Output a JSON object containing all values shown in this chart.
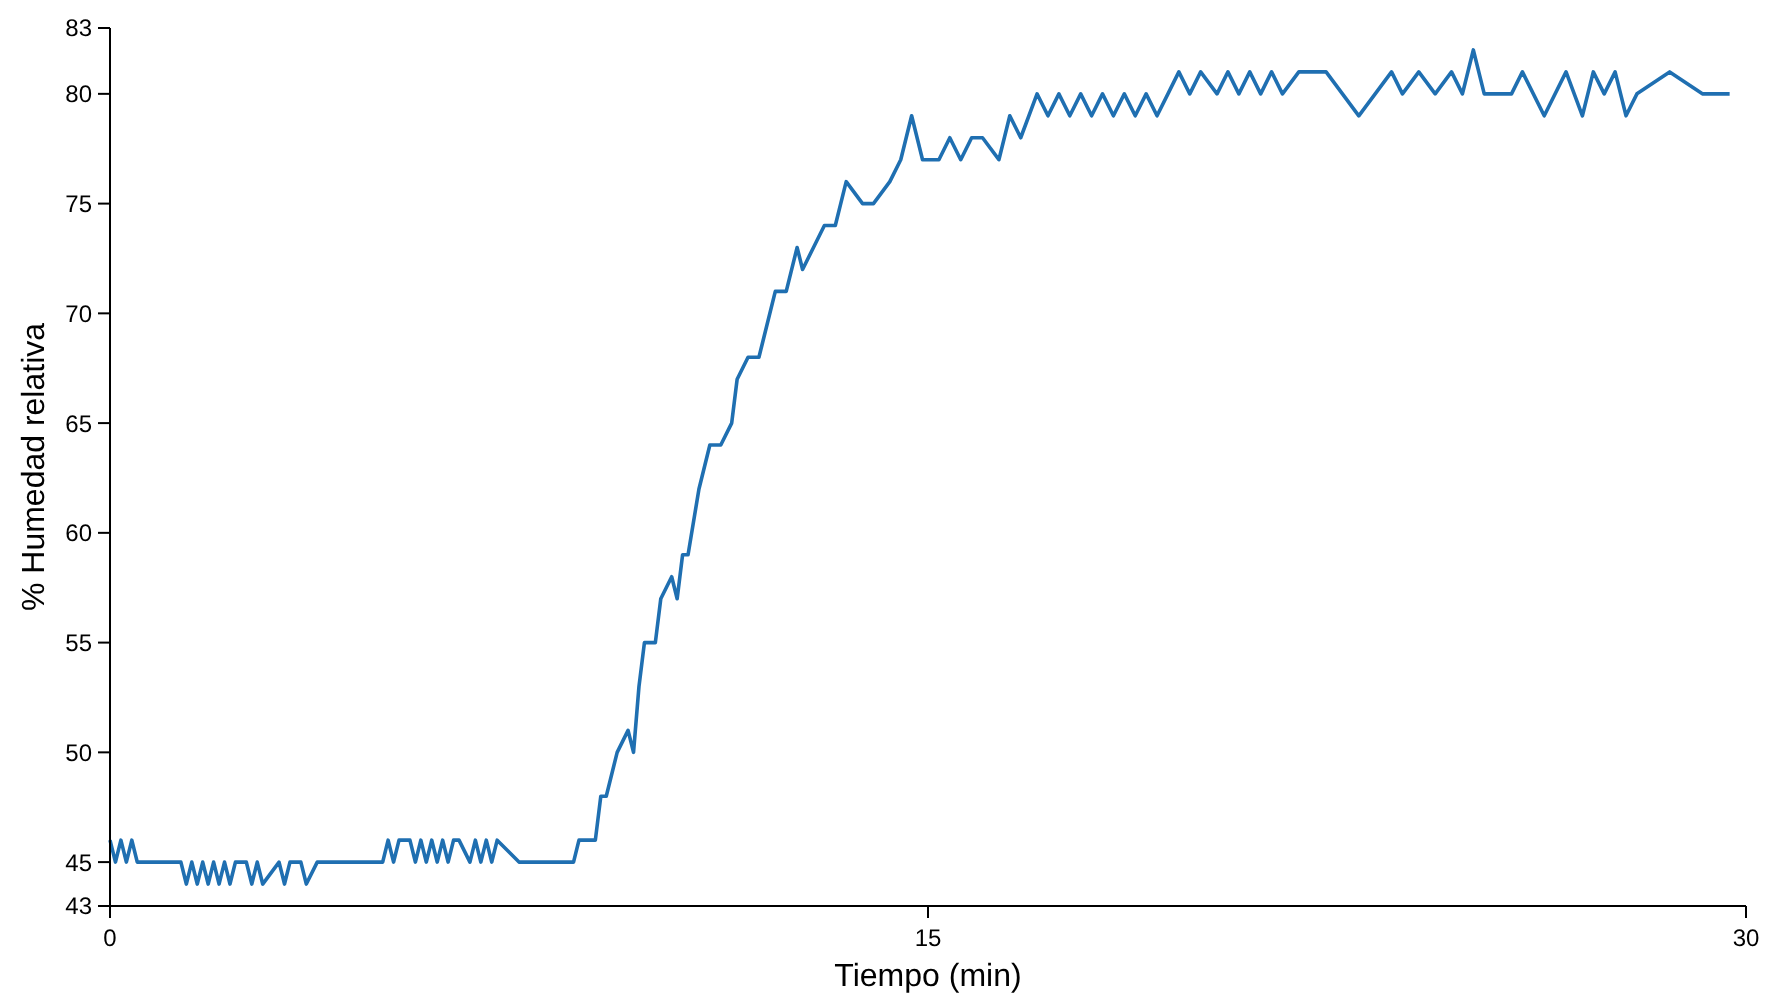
{
  "chart_data": {
    "type": "line",
    "xlabel": "Tiempo (min)",
    "ylabel": "% Humedad relativa",
    "xlim": [
      0,
      30
    ],
    "xticks": [
      0,
      15,
      30
    ],
    "ylim": [
      43,
      83
    ],
    "yticks": [
      43,
      45,
      50,
      55,
      60,
      65,
      70,
      75,
      80,
      83
    ],
    "marker": "none",
    "line_style": "solid",
    "series": [
      {
        "color": "#1f6fb1",
        "x": [
          0,
          0.1,
          0.2,
          0.3,
          0.4,
          0.5,
          1.2,
          1.3,
          1.4,
          1.5,
          1.6,
          1.7,
          1.8,
          1.9,
          2.0,
          2.1,
          2.2,
          2.3,
          2.5,
          2.6,
          2.7,
          2.8,
          3.1,
          3.2,
          3.3,
          3.5,
          3.6,
          3.8,
          4.5,
          5.0,
          5.1,
          5.2,
          5.3,
          5.5,
          5.6,
          5.7,
          5.8,
          5.9,
          6.0,
          6.1,
          6.2,
          6.3,
          6.4,
          6.6,
          6.7,
          6.8,
          6.9,
          7.0,
          7.1,
          7.5,
          8.5,
          8.6,
          8.9,
          9.0,
          9.1,
          9.3,
          9.5,
          9.6,
          9.7,
          9.8,
          10.0,
          10.1,
          10.3,
          10.4,
          10.5,
          10.6,
          10.8,
          11.0,
          11.2,
          11.4,
          11.5,
          11.7,
          11.9,
          12.0,
          12.2,
          12.4,
          12.6,
          12.7,
          12.9,
          13.1,
          13.3,
          13.5,
          13.8,
          14.0,
          14.3,
          14.5,
          14.7,
          14.9,
          15.2,
          15.4,
          15.6,
          15.8,
          16.0,
          16.3,
          16.5,
          16.7,
          17.0,
          17.2,
          17.4,
          17.6,
          17.8,
          18.0,
          18.2,
          18.4,
          18.6,
          18.8,
          19.0,
          19.2,
          19.4,
          19.6,
          19.8,
          20.0,
          20.3,
          20.5,
          20.7,
          20.9,
          21.1,
          21.3,
          21.5,
          21.8,
          22.0,
          22.3,
          22.6,
          22.9,
          23.2,
          23.5,
          23.7,
          24.0,
          24.3,
          24.6,
          24.8,
          25.0,
          25.2,
          25.4,
          25.7,
          25.9,
          26.3,
          26.7,
          27.0,
          27.2,
          27.4,
          27.6,
          27.8,
          28.0,
          28.6,
          29.2,
          29.7
        ],
        "values": [
          46,
          45,
          46,
          45,
          46,
          45,
          45,
          45,
          44,
          45,
          44,
          45,
          44,
          45,
          44,
          45,
          44,
          45,
          45,
          44,
          45,
          44,
          45,
          44,
          45,
          45,
          44,
          45,
          45,
          45,
          46,
          45,
          46,
          46,
          45,
          46,
          45,
          46,
          45,
          46,
          45,
          46,
          46,
          45,
          46,
          45,
          46,
          45,
          46,
          45,
          45,
          46,
          46,
          48,
          48,
          50,
          51,
          50,
          53,
          55,
          55,
          57,
          58,
          57,
          59,
          59,
          62,
          64,
          64,
          65,
          67,
          68,
          68,
          69,
          71,
          71,
          73,
          72,
          73,
          74,
          74,
          76,
          75,
          75,
          76,
          77,
          79,
          77,
          77,
          78,
          77,
          78,
          78,
          77,
          79,
          78,
          80,
          79,
          80,
          79,
          80,
          79,
          80,
          79,
          80,
          79,
          80,
          79,
          80,
          81,
          80,
          81,
          80,
          81,
          80,
          81,
          80,
          81,
          80,
          81,
          81,
          81,
          80,
          79,
          80,
          81,
          80,
          81,
          80,
          81,
          80,
          82,
          80,
          80,
          80,
          81,
          79,
          81,
          79,
          81,
          80,
          81,
          79,
          80,
          81,
          80,
          80
        ]
      }
    ]
  }
}
